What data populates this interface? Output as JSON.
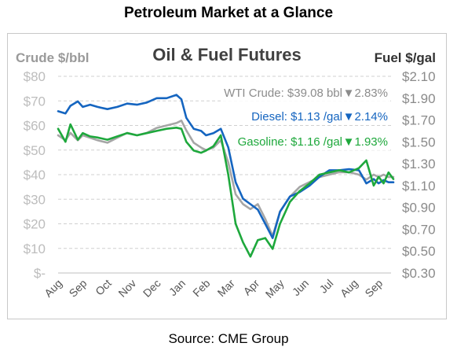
{
  "page": {
    "title": "Petroleum Market at a Glance",
    "source": "Source: CME Group"
  },
  "chart_data": {
    "type": "line",
    "title": "Oil & Fuel Futures",
    "ylabel_left": "Crude $/bbl",
    "ylabel_right": "Fuel $/gal",
    "ylim_left": [
      0,
      80
    ],
    "ylim_right": [
      0.3,
      2.1
    ],
    "yticks_left": [
      "$-",
      "$10",
      "$20",
      "$30",
      "$40",
      "$50",
      "$60",
      "$70",
      "$80"
    ],
    "yticks_right": [
      "$0.30",
      "$0.50",
      "$0.70",
      "$0.90",
      "$1.10",
      "$1.30",
      "$1.50",
      "$1.70",
      "$1.90",
      "$2.10"
    ],
    "x_months": [
      "Aug",
      "Sep",
      "Oct",
      "Nov",
      "Dec",
      "Jan",
      "Feb",
      "Mar",
      "Apr",
      "May",
      "Jun",
      "Jul",
      "Aug",
      "Sep"
    ],
    "grid": true,
    "legend_placement": "top-right",
    "annotations": [
      {
        "series": "WTI Crude",
        "text": "WTI Crude: $39.08 bbl",
        "change": "▼2.83%",
        "color": "#8c8c8c"
      },
      {
        "series": "Diesel",
        "text": "Diesel:  $1.13 /gal",
        "change": "▼2.14%",
        "color": "#1565c0"
      },
      {
        "series": "Gasoline",
        "text": "Gasoline:  $1.16 /gal",
        "change": "▼1.93%",
        "color": "#1ea83c"
      }
    ],
    "series": [
      {
        "name": "WTI Crude",
        "axis": "left",
        "color": "#a6a6a6",
        "x": [
          0,
          0.3,
          0.5,
          0.8,
          1.0,
          1.3,
          1.6,
          2.0,
          2.4,
          2.8,
          3.2,
          3.6,
          4.0,
          4.4,
          4.8,
          5.0,
          5.2,
          5.5,
          5.8,
          6.0,
          6.3,
          6.6,
          6.9,
          7.2,
          7.5,
          7.8,
          8.1,
          8.4,
          8.7,
          9.0,
          9.4,
          9.8,
          10.2,
          10.6,
          11.0,
          11.4,
          11.8,
          12.2,
          12.5,
          12.8,
          13.0,
          13.2,
          13.4,
          13.6
        ],
        "y": [
          56,
          54,
          57,
          54,
          56,
          55,
          54,
          53,
          55,
          57,
          56,
          57,
          59,
          60,
          61,
          62,
          58,
          53,
          51,
          50,
          51,
          54,
          45,
          32,
          28,
          26,
          28,
          22,
          15,
          25,
          31,
          35,
          37,
          39,
          40,
          41,
          41,
          40,
          38,
          40,
          39,
          40,
          39,
          39.08
        ]
      },
      {
        "name": "Diesel",
        "axis": "right",
        "color": "#1565c0",
        "x": [
          0,
          0.3,
          0.5,
          0.8,
          1.0,
          1.3,
          1.6,
          2.0,
          2.4,
          2.8,
          3.2,
          3.6,
          4.0,
          4.4,
          4.8,
          5.0,
          5.2,
          5.5,
          5.8,
          6.0,
          6.3,
          6.6,
          6.9,
          7.2,
          7.5,
          7.8,
          8.1,
          8.4,
          8.7,
          9.0,
          9.4,
          9.8,
          10.2,
          10.6,
          11.0,
          11.4,
          11.8,
          12.2,
          12.5,
          12.8,
          13.0,
          13.2,
          13.4,
          13.6
        ],
        "y": [
          1.78,
          1.76,
          1.83,
          1.87,
          1.82,
          1.84,
          1.82,
          1.8,
          1.82,
          1.85,
          1.84,
          1.86,
          1.9,
          1.9,
          1.93,
          1.89,
          1.72,
          1.62,
          1.6,
          1.56,
          1.58,
          1.62,
          1.45,
          1.13,
          0.98,
          0.93,
          0.88,
          0.75,
          0.62,
          0.86,
          1.0,
          1.04,
          1.1,
          1.18,
          1.24,
          1.24,
          1.25,
          1.24,
          1.12,
          1.16,
          1.12,
          1.15,
          1.13,
          1.13
        ]
      },
      {
        "name": "Gasoline",
        "axis": "right",
        "color": "#1ea83c",
        "x": [
          0,
          0.3,
          0.5,
          0.8,
          1.0,
          1.3,
          1.6,
          2.0,
          2.4,
          2.8,
          3.2,
          3.6,
          4.0,
          4.4,
          4.8,
          5.0,
          5.2,
          5.5,
          5.8,
          6.0,
          6.3,
          6.6,
          6.9,
          7.2,
          7.5,
          7.8,
          8.1,
          8.4,
          8.7,
          9.0,
          9.4,
          9.8,
          10.2,
          10.6,
          11.0,
          11.4,
          11.8,
          12.2,
          12.5,
          12.8,
          13.0,
          13.2,
          13.4,
          13.6
        ],
        "y": [
          1.62,
          1.5,
          1.66,
          1.52,
          1.58,
          1.55,
          1.54,
          1.52,
          1.55,
          1.58,
          1.56,
          1.58,
          1.6,
          1.62,
          1.63,
          1.62,
          1.5,
          1.42,
          1.4,
          1.42,
          1.46,
          1.56,
          1.2,
          0.75,
          0.58,
          0.45,
          0.6,
          0.62,
          0.52,
          0.75,
          0.95,
          1.05,
          1.12,
          1.2,
          1.22,
          1.24,
          1.22,
          1.26,
          1.33,
          1.1,
          1.18,
          1.12,
          1.22,
          1.16
        ]
      }
    ]
  }
}
